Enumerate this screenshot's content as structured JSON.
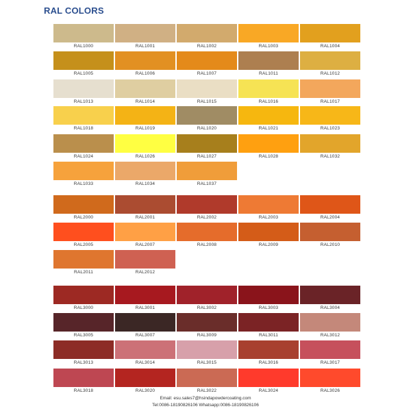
{
  "title": "RAL COLORS",
  "footer": {
    "email": "Email: esu.sales7@hsindapowdercoating.com",
    "contact": "Tel:0086-18190826106 Whatsapp:0086-18190826106"
  },
  "swatches": [
    {
      "code": "RAL1000",
      "color": "#CDBA8C"
    },
    {
      "code": "RAL1001",
      "color": "#D0B084"
    },
    {
      "code": "RAL1002",
      "color": "#D2AA6D"
    },
    {
      "code": "RAL1003",
      "color": "#F9A825"
    },
    {
      "code": "RAL1004",
      "color": "#E2A01E"
    },
    {
      "code": "RAL1005",
      "color": "#C5901B"
    },
    {
      "code": "RAL1006",
      "color": "#E29022"
    },
    {
      "code": "RAL1007",
      "color": "#E48A1A"
    },
    {
      "code": "RAL1011",
      "color": "#AD7F50"
    },
    {
      "code": "RAL1012",
      "color": "#DDAF42"
    },
    {
      "code": "RAL1013",
      "color": "#E6DFCF"
    },
    {
      "code": "RAL1014",
      "color": "#DFCEA1"
    },
    {
      "code": "RAL1015",
      "color": "#EADEC4"
    },
    {
      "code": "RAL1016",
      "color": "#F6E354"
    },
    {
      "code": "RAL1017",
      "color": "#F3A75C"
    },
    {
      "code": "RAL1018",
      "color": "#F8D04C"
    },
    {
      "code": "RAL1019",
      "color": "#F4B315"
    },
    {
      "code": "RAL1020",
      "color": "#A08C64"
    },
    {
      "code": "RAL1021",
      "color": "#F6B70F"
    },
    {
      "code": "RAL1023",
      "color": "#F7B718"
    },
    {
      "code": "RAL1024",
      "color": "#BA8F4C"
    },
    {
      "code": "RAL1026",
      "color": "#FFFF42"
    },
    {
      "code": "RAL1027",
      "color": "#A77F1C"
    },
    {
      "code": "RAL1028",
      "color": "#FFA010"
    },
    {
      "code": "RAL1032",
      "color": "#E2A52B"
    },
    {
      "code": "RAL1033",
      "color": "#F6A23C"
    },
    {
      "code": "RAL1034",
      "color": "#EBA869"
    },
    {
      "code": "RAL1037",
      "color": "#F09D3A"
    },
    {
      "code": "RAL2000",
      "color": "#D06A1C"
    },
    {
      "code": "RAL2001",
      "color": "#AB4C31"
    },
    {
      "code": "RAL2002",
      "color": "#B03A2B"
    },
    {
      "code": "RAL2003",
      "color": "#EE7A34"
    },
    {
      "code": "RAL2004",
      "color": "#DF5618"
    },
    {
      "code": "RAL2005",
      "color": "#FF4F1E"
    },
    {
      "code": "RAL2007",
      "color": "#FFA045"
    },
    {
      "code": "RAL2008",
      "color": "#E56C2B"
    },
    {
      "code": "RAL2009",
      "color": "#D45C18"
    },
    {
      "code": "RAL2010",
      "color": "#C55F30"
    },
    {
      "code": "RAL2011",
      "color": "#DF762F"
    },
    {
      "code": "RAL2012",
      "color": "#CF6152"
    },
    {
      "code": "RAL3000",
      "color": "#9D2923"
    },
    {
      "code": "RAL3001",
      "color": "#A7191F"
    },
    {
      "code": "RAL3002",
      "color": "#A0222A"
    },
    {
      "code": "RAL3003",
      "color": "#8A141B"
    },
    {
      "code": "RAL3004",
      "color": "#6A2327"
    },
    {
      "code": "RAL3005",
      "color": "#572529"
    },
    {
      "code": "RAL3007",
      "color": "#3B2725"
    },
    {
      "code": "RAL3009",
      "color": "#6A2D2A"
    },
    {
      "code": "RAL3011",
      "color": "#7B2325"
    },
    {
      "code": "RAL3012",
      "color": "#C4887A"
    },
    {
      "code": "RAL3013",
      "color": "#8D2C26"
    },
    {
      "code": "RAL3014",
      "color": "#CC7177"
    },
    {
      "code": "RAL3015",
      "color": "#D7A0AA"
    },
    {
      "code": "RAL3016",
      "color": "#A8402F"
    },
    {
      "code": "RAL3017",
      "color": "#C6505C"
    },
    {
      "code": "RAL3018",
      "color": "#BE4752"
    },
    {
      "code": "RAL3020",
      "color": "#B42520"
    },
    {
      "code": "RAL3022",
      "color": "#CB6A54"
    },
    {
      "code": "RAL3024",
      "color": "#FF3A2C"
    },
    {
      "code": "RAL3026",
      "color": "#FF4A2C"
    }
  ]
}
